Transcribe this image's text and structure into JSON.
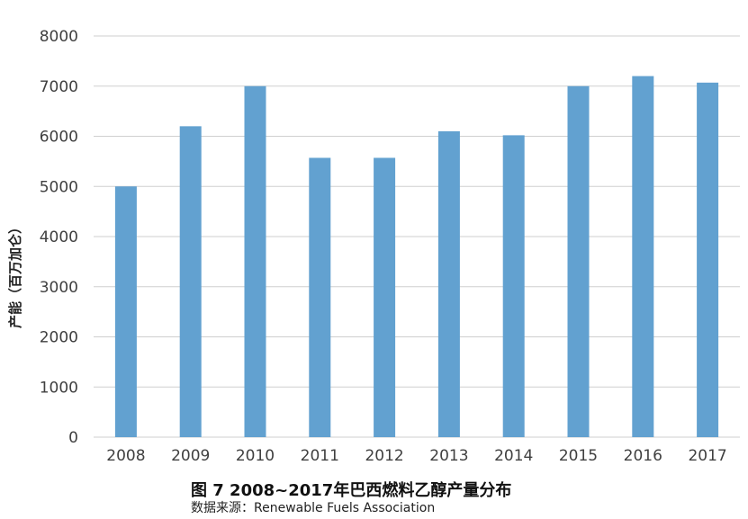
{
  "chart_data": {
    "type": "bar",
    "categories": [
      "2008",
      "2009",
      "2010",
      "2011",
      "2012",
      "2013",
      "2014",
      "2015",
      "2016",
      "2017"
    ],
    "values": [
      5000,
      6200,
      7000,
      5570,
      5570,
      6100,
      6020,
      7000,
      7200,
      7070
    ],
    "ylabel": "产能（百万加仑）",
    "xlabel": "",
    "ylim": [
      0,
      8000
    ],
    "yticks": [
      0,
      1000,
      2000,
      3000,
      4000,
      5000,
      6000,
      7000,
      8000
    ],
    "grid": true,
    "bar_color": "#62a1d0",
    "grid_color": "#cfcfcf"
  },
  "caption": "图 7 2008~2017年巴西燃料乙醇产量分布",
  "source": "数据来源：Renewable Fuels Association"
}
